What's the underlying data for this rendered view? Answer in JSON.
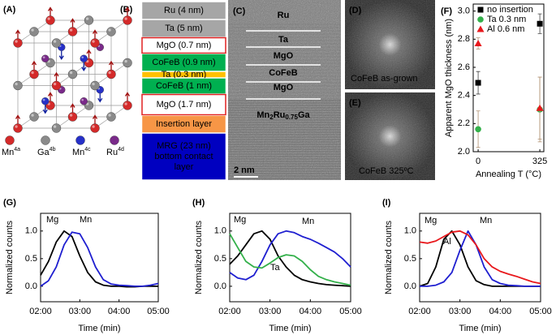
{
  "panel_labels": [
    "(A)",
    "(B)",
    "(C)",
    "(D)",
    "(E)"
  ],
  "crystal_legend": [
    {
      "element": "Mn",
      "site": "4a",
      "color": "#d42a2a"
    },
    {
      "element": "Ga",
      "site": "4b",
      "color": "#8a8a8a"
    },
    {
      "element": "Mn",
      "site": "4c",
      "color": "#2630c8"
    },
    {
      "element": "Ru",
      "site": "4d",
      "color": "#7a2a8a"
    }
  ],
  "stack": [
    {
      "label": [
        "Ru (4 nm)"
      ],
      "color": "#a6a6a6",
      "text_color": "#ffffff",
      "border": "#ffffff"
    },
    {
      "label": [
        "Ta (5 nm)"
      ],
      "color": "#a6a6a6",
      "text_color": "#ffffff",
      "border": "#ffffff"
    },
    {
      "label": [
        "MgO (0.7 nm)"
      ],
      "color": "#ffffff",
      "text_color": "#e02020",
      "border": "#e02020"
    },
    {
      "label": [
        "CoFeB (0.9 nm)"
      ],
      "color": "#00b050",
      "text_color": "#ffffff",
      "border": "#ffffff"
    },
    {
      "label": [
        "Ta (0.3 nm)"
      ],
      "color": "#ffc000",
      "text_color": "#333333",
      "border": "#ffffff"
    },
    {
      "label": [
        "CoFeB (1 nm)"
      ],
      "color": "#00b050",
      "text_color": "#ffffff",
      "border": "#ffffff"
    },
    {
      "label": [
        "MgO (1.7 nm)"
      ],
      "color": "#ffffff",
      "text_color": "#e02020",
      "border": "#e02020"
    },
    {
      "label": [
        "Insertion layer"
      ],
      "color": "#f79646",
      "text_color": "#ffffff",
      "border": "#ffffff"
    },
    {
      "label": [
        "MRG (23 nm)",
        "bottom contact",
        "layer"
      ],
      "color": "#0000c0",
      "text_color": "#ffffff",
      "border": "#ffffff"
    }
  ],
  "tem": {
    "labels": [
      "Ru",
      "Ta",
      "MgO",
      "CoFeB",
      "MgO"
    ],
    "substrate": [
      "Mn",
      "2",
      "Ru",
      "0.75",
      "Ga"
    ],
    "scale_bar": "2 nm"
  },
  "fft": [
    {
      "caption": "CoFeB  as-grown"
    },
    {
      "caption": "CoFeB  325ºC"
    }
  ],
  "chart_data": [
    {
      "type": "scatter",
      "label": "(F)",
      "x": [
        0,
        325
      ],
      "xlim": [
        -26,
        346
      ],
      "xticks": [
        0,
        325
      ],
      "ylim": [
        2.0,
        3.05
      ],
      "yticks": [
        {
          "value": 2.0,
          "label": "2.0"
        },
        2.2,
        2.4,
        2.6,
        2.8,
        {
          "value": 3.0,
          "label": "3.0"
        }
      ],
      "xlabel": "Annealing T (°C)",
      "ylabel": "Apparent MgO thickness (nm)",
      "legend": "top-left",
      "series": [
        {
          "name": "no insertion",
          "color": "#000000",
          "marker": "square",
          "values": [
            2.49,
            2.91
          ],
          "errors": [
            0.08,
            0.07
          ]
        },
        {
          "name": "Ta 0.3 nm",
          "color": "#33b04a",
          "marker": "circle",
          "values": [
            2.16,
            2.3
          ],
          "errors": [
            0.13,
            0.23
          ]
        },
        {
          "name": "Al 0.6 nm",
          "color": "#e8181c",
          "marker": "triangle",
          "values": [
            2.77,
            2.31
          ],
          "errors": [
            0.04,
            0.22
          ]
        }
      ]
    },
    {
      "type": "line",
      "label": "(G)",
      "x": [
        2.0,
        2.2,
        2.4,
        2.6,
        2.8,
        3.0,
        3.2,
        3.4,
        3.6,
        3.8,
        4.0,
        4.2,
        4.4,
        4.6,
        4.8,
        5.0
      ],
      "xlim": [
        2,
        5
      ],
      "xticks": [
        {
          "value": 2,
          "label": "02:00"
        },
        {
          "value": 3,
          "label": "03:00"
        },
        {
          "value": 4,
          "label": "04:00"
        },
        {
          "value": 5,
          "label": "05:00"
        }
      ],
      "ylim": [
        -0.28,
        1.32
      ],
      "yticks": [
        {
          "value": 0,
          "label": "0.0"
        },
        0.5,
        {
          "value": 1,
          "label": "1.0"
        }
      ],
      "xlabel": "Time (min)",
      "ylabel": "Normalized counts",
      "series": [
        {
          "name": "Mg",
          "color": "#000000",
          "values": [
            0.2,
            0.45,
            0.8,
            1.0,
            0.9,
            0.55,
            0.25,
            0.08,
            0.02,
            0.0,
            0.0,
            -0.01,
            -0.01,
            0.0,
            0.0,
            0.0
          ]
        },
        {
          "name": "Mn",
          "color": "#1f1fd0",
          "values": [
            0.0,
            0.1,
            0.35,
            0.75,
            0.98,
            0.95,
            0.7,
            0.35,
            0.12,
            0.04,
            0.02,
            0.01,
            0.0,
            0.0,
            0.02,
            0.05
          ]
        }
      ]
    },
    {
      "type": "line",
      "label": "(H)",
      "x": [
        2.0,
        2.2,
        2.4,
        2.6,
        2.8,
        3.0,
        3.2,
        3.4,
        3.6,
        3.8,
        4.0,
        4.2,
        4.4,
        4.6,
        4.8,
        5.0
      ],
      "xlim": [
        2,
        5
      ],
      "xticks": [
        {
          "value": 2,
          "label": "02:00"
        },
        {
          "value": 3,
          "label": "03:00"
        },
        {
          "value": 4,
          "label": "04:00"
        },
        {
          "value": 5,
          "label": "05:00"
        }
      ],
      "ylim": [
        -0.28,
        1.32
      ],
      "yticks": [
        {
          "value": 0,
          "label": "0.0"
        },
        0.5,
        {
          "value": 1,
          "label": "1.0"
        }
      ],
      "xlabel": "Time (min)",
      "ylabel": "Normalized counts",
      "series": [
        {
          "name": "Mg",
          "color": "#000000",
          "values": [
            0.4,
            0.55,
            0.75,
            0.95,
            1.0,
            0.85,
            0.55,
            0.35,
            0.2,
            0.12,
            0.08,
            0.05,
            0.03,
            0.02,
            0.01,
            0.0
          ]
        },
        {
          "name": "Mn",
          "color": "#1f1fd0",
          "values": [
            0.25,
            0.15,
            0.12,
            0.2,
            0.45,
            0.75,
            0.95,
            1.0,
            0.97,
            0.9,
            0.85,
            0.78,
            0.7,
            0.62,
            0.5,
            0.35
          ]
        },
        {
          "name": "Ta",
          "color": "#33b04a",
          "values": [
            0.95,
            0.7,
            0.45,
            0.35,
            0.33,
            0.42,
            0.52,
            0.57,
            0.55,
            0.45,
            0.3,
            0.18,
            0.12,
            0.08,
            0.05,
            0.02
          ]
        }
      ]
    },
    {
      "type": "line",
      "label": "(I)",
      "x": [
        2.0,
        2.2,
        2.4,
        2.6,
        2.8,
        3.0,
        3.2,
        3.4,
        3.6,
        3.8,
        4.0,
        4.2,
        4.4,
        4.6,
        4.8,
        5.0
      ],
      "xlim": [
        2,
        5
      ],
      "xticks": [
        {
          "value": 2,
          "label": "02:00"
        },
        {
          "value": 3,
          "label": "03:00"
        },
        {
          "value": 4,
          "label": "04:00"
        },
        {
          "value": 5,
          "label": "05:00"
        }
      ],
      "ylim": [
        -0.28,
        1.32
      ],
      "yticks": [
        {
          "value": 0,
          "label": "0.0"
        },
        0.5,
        {
          "value": 1,
          "label": "1.0"
        }
      ],
      "xlabel": "Time (min)",
      "ylabel": "Normalized counts",
      "series": [
        {
          "name": "Mg",
          "color": "#000000",
          "values": [
            0.0,
            0.05,
            0.35,
            0.85,
            1.0,
            0.75,
            0.35,
            0.1,
            0.03,
            0.0,
            0.0,
            0.0,
            0.0,
            0.0,
            0.0,
            0.0
          ]
        },
        {
          "name": "Mn",
          "color": "#1f1fd0",
          "values": [
            0.0,
            0.0,
            0.02,
            0.08,
            0.25,
            0.65,
            1.0,
            0.75,
            0.35,
            0.12,
            0.05,
            0.02,
            0.01,
            0.0,
            0.0,
            0.0
          ]
        },
        {
          "name": "Al",
          "color": "#e8181c",
          "values": [
            0.8,
            0.78,
            0.82,
            0.9,
            0.98,
            1.0,
            0.93,
            0.75,
            0.5,
            0.35,
            0.27,
            0.22,
            0.18,
            0.13,
            0.08,
            0.05
          ]
        }
      ]
    }
  ]
}
